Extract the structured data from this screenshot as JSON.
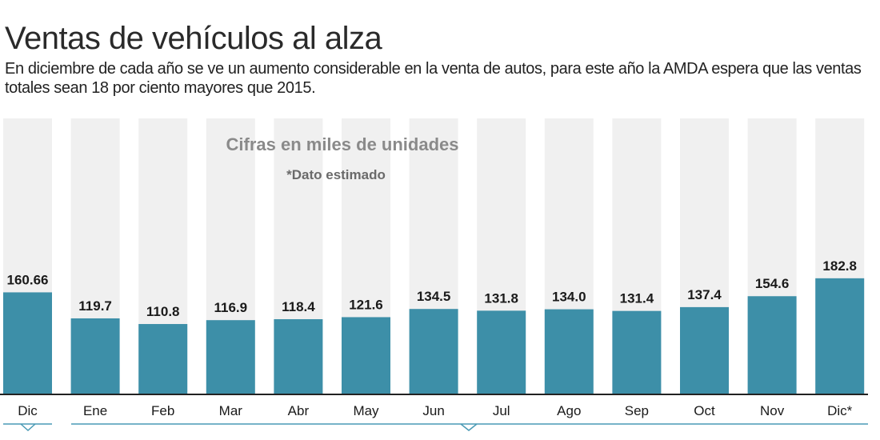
{
  "header": {
    "title": "Ventas de vehículos al alza",
    "subtitle": "En diciembre de cada año se ve un aumento considerable en la venta de autos, para este año la AMDA espera que las ventas totales sean 18 por ciento mayores que 2015."
  },
  "colors": {
    "bar": "#3d8fa8",
    "column_bg": "#f0f0f0",
    "baseline": "#222222",
    "bracket": "#4a9ab5"
  },
  "chart_data": {
    "type": "bar",
    "categories": [
      "Dic",
      "Ene",
      "Feb",
      "Mar",
      "Abr",
      "May",
      "Jun",
      "Jul",
      "Ago",
      "Sep",
      "Oct",
      "Nov",
      "Dic*"
    ],
    "values": [
      160.66,
      119.7,
      110.8,
      116.9,
      118.4,
      121.6,
      134.5,
      131.8,
      134.0,
      131.4,
      137.4,
      154.6,
      182.8
    ],
    "value_labels": [
      "160.66",
      "119.7",
      "110.8",
      "116.9",
      "118.4",
      "121.6",
      "134.5",
      "131.8",
      "134.0",
      "131.4",
      "137.4",
      "154.6",
      "182.8"
    ],
    "title": "Ventas de vehículos al alza",
    "subtitle": "En diciembre de cada año se ve un aumento considerable en la venta de autos, para este año la AMDA espera que las ventas totales sean 18 por ciento mayores que 2015.",
    "annotations": [
      "Cifras en miles de unidades",
      "*Dato estimado"
    ],
    "xlabel": "",
    "ylabel": "",
    "ylim": [
      0,
      190
    ],
    "grid": false,
    "legend": "none"
  }
}
